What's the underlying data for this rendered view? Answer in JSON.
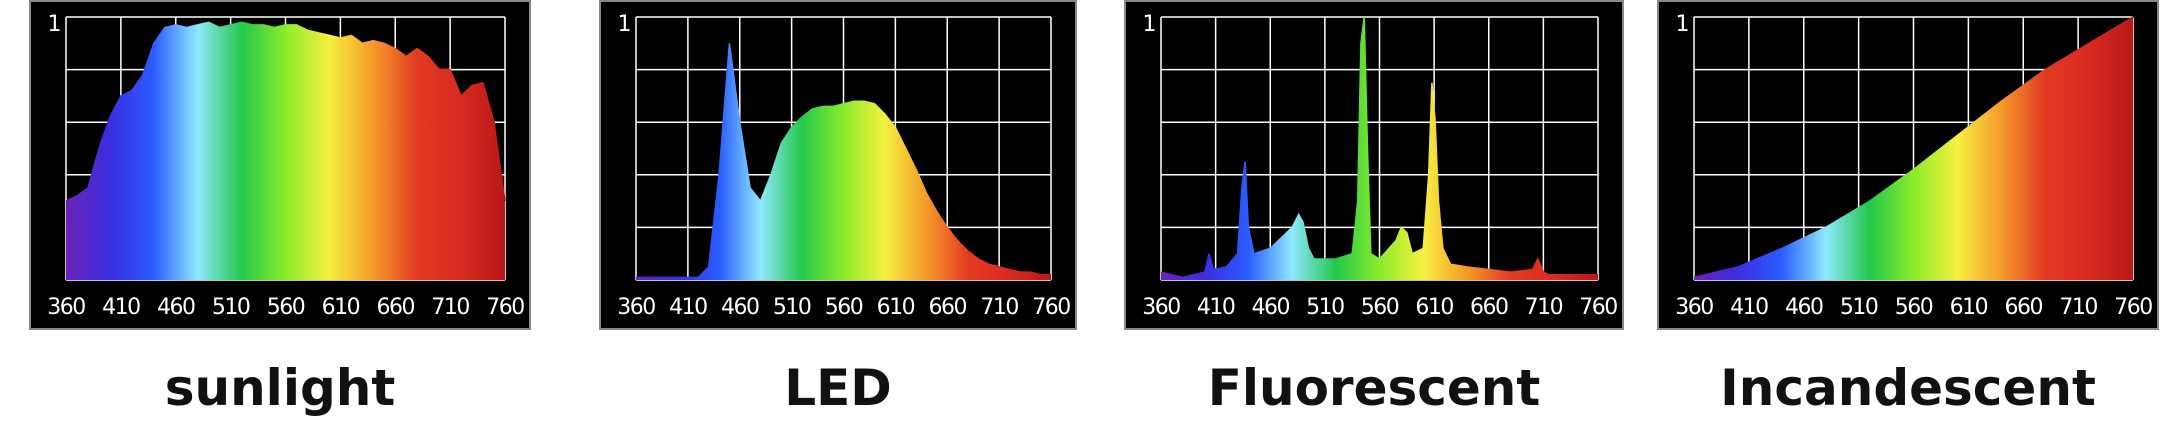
{
  "chart_data": [
    {
      "type": "area",
      "title": "sunlight",
      "x": [
        360,
        370,
        380,
        390,
        400,
        410,
        420,
        430,
        440,
        450,
        460,
        470,
        480,
        490,
        500,
        510,
        520,
        530,
        540,
        550,
        560,
        570,
        580,
        590,
        600,
        610,
        620,
        630,
        640,
        650,
        660,
        670,
        680,
        690,
        700,
        710,
        720,
        730,
        740,
        750,
        760
      ],
      "values": [
        0.3,
        0.32,
        0.35,
        0.5,
        0.62,
        0.7,
        0.72,
        0.78,
        0.9,
        0.96,
        0.97,
        0.96,
        0.97,
        0.98,
        0.96,
        0.97,
        0.98,
        0.97,
        0.97,
        0.96,
        0.97,
        0.97,
        0.95,
        0.94,
        0.93,
        0.92,
        0.93,
        0.9,
        0.91,
        0.9,
        0.88,
        0.85,
        0.88,
        0.85,
        0.8,
        0.8,
        0.7,
        0.74,
        0.75,
        0.6,
        0.3
      ],
      "xlim": [
        360,
        760
      ],
      "xticks": [
        360,
        410,
        460,
        510,
        560,
        610,
        660,
        710,
        760
      ],
      "ylim": [
        0,
        1
      ],
      "yticks": [
        1
      ],
      "ygrid": [
        0.2,
        0.4,
        0.6,
        0.8
      ],
      "gradient": [
        "#6a22b8",
        "#3a2ee0",
        "#2a5cff",
        "#8fe8ff",
        "#22c84a",
        "#8aec2a",
        "#f6f040",
        "#f59a2a",
        "#e23a22",
        "#d82a20",
        "#b81818"
      ]
    },
    {
      "type": "area",
      "title": "LED",
      "x": [
        360,
        370,
        380,
        390,
        400,
        410,
        420,
        430,
        440,
        450,
        460,
        470,
        480,
        490,
        500,
        510,
        520,
        530,
        540,
        550,
        560,
        570,
        580,
        590,
        600,
        610,
        620,
        630,
        640,
        650,
        660,
        670,
        680,
        690,
        700,
        710,
        720,
        730,
        740,
        750,
        760
      ],
      "values": [
        0.01,
        0.01,
        0.01,
        0.01,
        0.01,
        0.01,
        0.01,
        0.05,
        0.4,
        0.9,
        0.6,
        0.35,
        0.3,
        0.4,
        0.52,
        0.58,
        0.62,
        0.65,
        0.66,
        0.66,
        0.67,
        0.68,
        0.68,
        0.67,
        0.63,
        0.58,
        0.5,
        0.42,
        0.33,
        0.26,
        0.2,
        0.15,
        0.11,
        0.08,
        0.06,
        0.05,
        0.04,
        0.03,
        0.03,
        0.02,
        0.02
      ],
      "xlim": [
        360,
        760
      ],
      "xticks": [
        360,
        410,
        460,
        510,
        560,
        610,
        660,
        710,
        760
      ],
      "ylim": [
        0,
        1
      ],
      "yticks": [
        1
      ],
      "ygrid": [
        0.2,
        0.4,
        0.6,
        0.8
      ],
      "gradient": [
        "#6a22b8",
        "#3a2ee0",
        "#2a5cff",
        "#8fe8ff",
        "#22c84a",
        "#8aec2a",
        "#f6f040",
        "#f59a2a",
        "#e23a22",
        "#d82a20",
        "#b81818"
      ]
    },
    {
      "type": "area",
      "title": "Fluorescent",
      "x": [
        360,
        370,
        380,
        400,
        404,
        408,
        420,
        430,
        434,
        437,
        440,
        445,
        460,
        480,
        486,
        490,
        495,
        500,
        520,
        535,
        540,
        543,
        546,
        549,
        552,
        560,
        575,
        580,
        585,
        590,
        600,
        605,
        608,
        611,
        614,
        618,
        625,
        640,
        660,
        680,
        700,
        705,
        710,
        715,
        730,
        760
      ],
      "values": [
        0.03,
        0.02,
        0.01,
        0.03,
        0.1,
        0.04,
        0.05,
        0.1,
        0.35,
        0.45,
        0.2,
        0.1,
        0.12,
        0.2,
        0.25,
        0.22,
        0.12,
        0.08,
        0.08,
        0.1,
        0.3,
        0.9,
        1.0,
        0.5,
        0.1,
        0.08,
        0.15,
        0.2,
        0.18,
        0.1,
        0.12,
        0.4,
        0.75,
        0.6,
        0.3,
        0.12,
        0.06,
        0.05,
        0.04,
        0.03,
        0.04,
        0.08,
        0.03,
        0.02,
        0.02,
        0.02
      ],
      "xlim": [
        360,
        760
      ],
      "xticks": [
        360,
        410,
        460,
        510,
        560,
        610,
        660,
        710,
        760
      ],
      "ylim": [
        0,
        1
      ],
      "yticks": [
        1
      ],
      "ygrid": [
        0.2,
        0.4,
        0.6,
        0.8
      ],
      "gradient": [
        "#6a22b8",
        "#3a2ee0",
        "#2a5cff",
        "#8fe8ff",
        "#22c84a",
        "#8aec2a",
        "#f6f040",
        "#f59a2a",
        "#e23a22",
        "#d82a20",
        "#b81818"
      ]
    },
    {
      "type": "area",
      "title": "Incandescent",
      "x": [
        360,
        400,
        440,
        480,
        520,
        560,
        600,
        640,
        680,
        720,
        760
      ],
      "values": [
        0.01,
        0.05,
        0.12,
        0.2,
        0.3,
        0.42,
        0.55,
        0.68,
        0.8,
        0.9,
        1.0
      ],
      "xlim": [
        360,
        760
      ],
      "xticks": [
        360,
        410,
        460,
        510,
        560,
        610,
        660,
        710,
        760
      ],
      "ylim": [
        0,
        1
      ],
      "yticks": [
        1
      ],
      "ygrid": [
        0.2,
        0.4,
        0.6,
        0.8
      ],
      "gradient": [
        "#6a22b8",
        "#3a2ee0",
        "#2a5cff",
        "#8fe8ff",
        "#22c84a",
        "#8aec2a",
        "#f6f040",
        "#f59a2a",
        "#e23a22",
        "#d82a20",
        "#b81818"
      ]
    }
  ]
}
